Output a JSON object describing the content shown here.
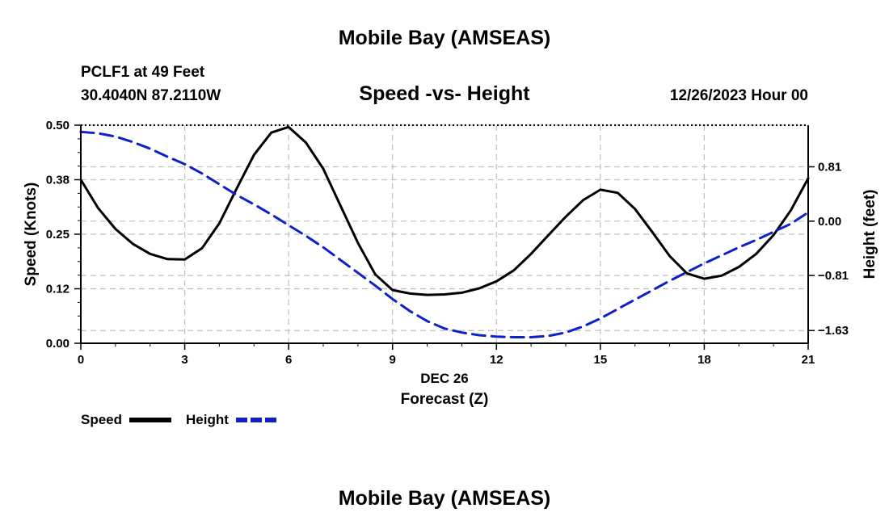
{
  "page": {
    "title": "Mobile Bay (AMSEAS)",
    "footer_title": "Mobile Bay (AMSEAS)",
    "station": "PCLF1 at 49 Feet",
    "coords": "30.4040N  87.2110W",
    "datetime": "12/26/2023 Hour 00"
  },
  "chart_data": {
    "type": "line",
    "title": "Speed -vs- Height",
    "xlabel": "Forecast (Z)",
    "xdate": "DEC 26",
    "ylabel": "Speed (Knots)",
    "y2label": "Height (feet)",
    "xlim": [
      0,
      21
    ],
    "ylim": [
      0,
      0.5
    ],
    "y2lim": [
      -1.82,
      1.43
    ],
    "xticks": [
      0,
      3,
      6,
      9,
      12,
      15,
      18,
      21
    ],
    "xtick_labels": [
      "0",
      "3",
      "6",
      "9",
      "12",
      "15",
      "18",
      "21"
    ],
    "yticks": [
      0,
      0.125,
      0.25,
      0.375,
      0.5
    ],
    "ytick_labels": [
      "0.00",
      "0.12",
      "0.25",
      "0.38",
      "0.50"
    ],
    "y2ticks": [
      -1.63,
      -0.81,
      0,
      0.81
    ],
    "y2tick_labels": [
      "−1.63",
      "−0.81",
      "0.00",
      "0.81"
    ],
    "grid": true,
    "series": [
      {
        "name": "Speed",
        "axis": "left",
        "color": "#000000",
        "style": "solid",
        "x": [
          0,
          0.5,
          1,
          1.5,
          2,
          2.5,
          3,
          3.5,
          4,
          4.5,
          5,
          5.5,
          6,
          6.5,
          7,
          7.5,
          8,
          8.5,
          9,
          9.5,
          10,
          10.5,
          11,
          11.5,
          12,
          12.5,
          13,
          13.5,
          14,
          14.5,
          15,
          15.5,
          16,
          16.5,
          17,
          17.5,
          18,
          18.5,
          19,
          19.5,
          20,
          20.5,
          21
        ],
        "values": [
          0.375,
          0.31,
          0.262,
          0.228,
          0.205,
          0.193,
          0.192,
          0.218,
          0.275,
          0.355,
          0.432,
          0.483,
          0.496,
          0.46,
          0.4,
          0.315,
          0.23,
          0.158,
          0.122,
          0.114,
          0.111,
          0.112,
          0.116,
          0.126,
          0.142,
          0.167,
          0.205,
          0.248,
          0.29,
          0.328,
          0.352,
          0.345,
          0.308,
          0.255,
          0.2,
          0.16,
          0.148,
          0.155,
          0.175,
          0.205,
          0.248,
          0.305,
          0.378
        ]
      },
      {
        "name": "Height",
        "axis": "right",
        "color": "#1020c8",
        "style": "dashed",
        "x": [
          0,
          0.5,
          1,
          1.5,
          2,
          2.5,
          3,
          3.5,
          4,
          4.5,
          5,
          5.5,
          6,
          6.5,
          7,
          7.5,
          8,
          8.5,
          9,
          9.5,
          10,
          10.5,
          11,
          11.5,
          12,
          12.5,
          13,
          13.5,
          14,
          14.5,
          15,
          15.5,
          16,
          16.5,
          17,
          17.5,
          18,
          18.5,
          19,
          19.5,
          20,
          20.5,
          21
        ],
        "values": [
          1.33,
          1.31,
          1.26,
          1.18,
          1.08,
          0.96,
          0.85,
          0.71,
          0.55,
          0.39,
          0.25,
          0.1,
          -0.06,
          -0.22,
          -0.39,
          -0.58,
          -0.77,
          -0.96,
          -1.16,
          -1.34,
          -1.49,
          -1.6,
          -1.66,
          -1.7,
          -1.72,
          -1.73,
          -1.73,
          -1.71,
          -1.66,
          -1.57,
          -1.45,
          -1.31,
          -1.17,
          -1.03,
          -0.89,
          -0.76,
          -0.63,
          -0.51,
          -0.39,
          -0.28,
          -0.16,
          -0.04,
          0.13
        ]
      }
    ],
    "legend": {
      "position": "bottom-left",
      "entries": [
        "Speed",
        "Height"
      ]
    }
  }
}
